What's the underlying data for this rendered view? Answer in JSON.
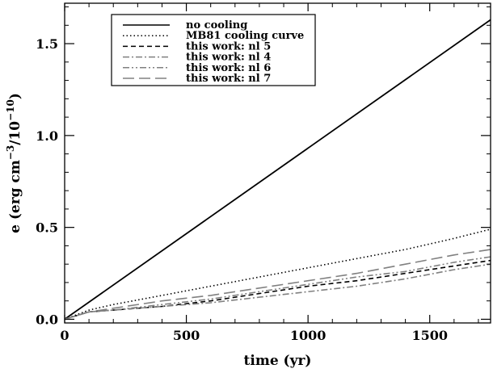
{
  "chart_data": {
    "type": "line",
    "xlabel": "time (yr)",
    "ylabel_parts": {
      "a": "e (erg cm",
      "b": "−3",
      "c": "/10",
      "d": "−10",
      "e": ")"
    },
    "xlim": [
      0,
      1750
    ],
    "ylim": [
      -0.02,
      1.72
    ],
    "x_ticks": [
      0,
      500,
      1000,
      1500
    ],
    "x_tick_labels": [
      "0",
      "500",
      "1000",
      "1500"
    ],
    "y_ticks": [
      0.0,
      0.5,
      1.0,
      1.5
    ],
    "y_tick_labels": [
      "0.0",
      "0.5",
      "1.0",
      "1.5"
    ],
    "grid": false,
    "legend_position": "top-left",
    "series": [
      {
        "name": "no cooling",
        "color": "#000000",
        "dash": "solid",
        "x": [
          0,
          1750
        ],
        "y": [
          0.0,
          1.63
        ]
      },
      {
        "name": "MB81 cooling curve",
        "color": "#000000",
        "dash": "dot",
        "x": [
          0,
          100,
          200,
          400,
          600,
          800,
          1000,
          1200,
          1400,
          1600,
          1750
        ],
        "y": [
          0.0,
          0.05,
          0.08,
          0.13,
          0.18,
          0.23,
          0.28,
          0.33,
          0.38,
          0.44,
          0.49
        ]
      },
      {
        "name": "this work: nl 5",
        "color": "#000000",
        "dash": "dash",
        "x": [
          0,
          100,
          200,
          400,
          600,
          800,
          1000,
          1200,
          1400,
          1600,
          1750
        ],
        "y": [
          0.0,
          0.04,
          0.05,
          0.07,
          0.1,
          0.14,
          0.18,
          0.21,
          0.25,
          0.29,
          0.32
        ]
      },
      {
        "name": "this work: nl 4",
        "color": "#808080",
        "dash": "dashdot",
        "x": [
          0,
          100,
          200,
          400,
          600,
          800,
          1000,
          1200,
          1400,
          1600,
          1750
        ],
        "y": [
          0.0,
          0.04,
          0.05,
          0.07,
          0.09,
          0.12,
          0.15,
          0.18,
          0.22,
          0.27,
          0.3
        ]
      },
      {
        "name": "this work: nl 6",
        "color": "#808080",
        "dash": "dashdotdot",
        "x": [
          0,
          100,
          200,
          400,
          600,
          800,
          1000,
          1200,
          1400,
          1600,
          1750
        ],
        "y": [
          0.0,
          0.04,
          0.05,
          0.08,
          0.11,
          0.15,
          0.19,
          0.23,
          0.26,
          0.31,
          0.34
        ]
      },
      {
        "name": "this work: nl 7",
        "color": "#808080",
        "dash": "longdash",
        "x": [
          0,
          100,
          200,
          400,
          600,
          800,
          1000,
          1200,
          1400,
          1600,
          1750
        ],
        "y": [
          0.0,
          0.04,
          0.06,
          0.1,
          0.13,
          0.17,
          0.21,
          0.25,
          0.3,
          0.35,
          0.38
        ]
      }
    ]
  }
}
